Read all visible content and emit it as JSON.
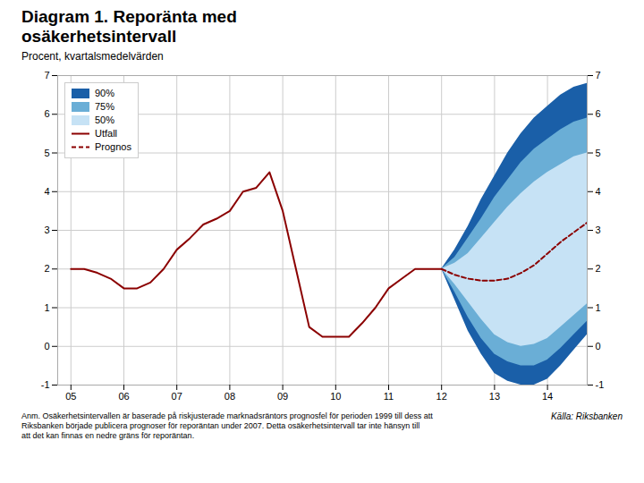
{
  "chart_data": {
    "type": "line",
    "title": "Diagram 1. Reporänta med\nosäkerhetsintervall",
    "subtitle": "Procent, kvartalsmedelvärden",
    "annotations": [
      "Anm. Osäkerhetsintervallen är baserade på riskjusterade marknadsräntors prognosfel för perioden 1999 till dess att\nRiksbanken började publicera prognoser för reporäntan under 2007. Detta osäkerhetsintervall tar inte hänsyn till\natt det kan finnas en nedre gräns för reporäntan.",
      "Källa: Riksbanken"
    ],
    "xlim": [
      2004.75,
      2014.75
    ],
    "xticks": [
      {
        "value": 2005,
        "label": "05"
      },
      {
        "value": 2006,
        "label": "06"
      },
      {
        "value": 2007,
        "label": "07"
      },
      {
        "value": 2008,
        "label": "08"
      },
      {
        "value": 2009,
        "label": "09"
      },
      {
        "value": 2010,
        "label": "10"
      },
      {
        "value": 2011,
        "label": "11"
      },
      {
        "value": 2012,
        "label": "12"
      },
      {
        "value": 2013,
        "label": "13"
      },
      {
        "value": 2014,
        "label": "14"
      }
    ],
    "ylim": [
      -1,
      7
    ],
    "yticks": [
      -1,
      0,
      1,
      2,
      3,
      4,
      5,
      6,
      7
    ],
    "grid": true,
    "legend": "upper left",
    "series": [
      {
        "name": "90%",
        "type": "area",
        "color": "#1a5fa8",
        "x": [
          2012.0,
          2012.25,
          2012.5,
          2012.75,
          2013.0,
          2013.25,
          2013.5,
          2013.75,
          2014.0,
          2014.25,
          2014.5,
          2014.75
        ],
        "lower": [
          2.0,
          1.2,
          0.4,
          -0.2,
          -0.7,
          -0.9,
          -1.0,
          -1.0,
          -0.85,
          -0.5,
          -0.1,
          0.3
        ],
        "upper": [
          2.0,
          2.5,
          3.1,
          3.8,
          4.4,
          5.0,
          5.5,
          5.9,
          6.2,
          6.5,
          6.7,
          6.8
        ]
      },
      {
        "name": "75%",
        "type": "area",
        "color": "#6aaed6",
        "x": [
          2012.0,
          2012.25,
          2012.5,
          2012.75,
          2013.0,
          2013.25,
          2013.5,
          2013.75,
          2014.0,
          2014.25,
          2014.5,
          2014.75
        ],
        "lower": [
          2.0,
          1.4,
          0.75,
          0.2,
          -0.2,
          -0.4,
          -0.5,
          -0.5,
          -0.35,
          -0.05,
          0.3,
          0.65
        ],
        "upper": [
          2.0,
          2.3,
          2.8,
          3.3,
          3.85,
          4.3,
          4.75,
          5.1,
          5.35,
          5.6,
          5.8,
          5.9
        ]
      },
      {
        "name": "50%",
        "type": "area",
        "color": "#c6e2f5",
        "x": [
          2012.0,
          2012.25,
          2012.5,
          2012.75,
          2013.0,
          2013.25,
          2013.5,
          2013.75,
          2014.0,
          2014.25,
          2014.5,
          2014.75
        ],
        "lower": [
          2.0,
          1.6,
          1.15,
          0.7,
          0.3,
          0.1,
          0.0,
          0.05,
          0.2,
          0.5,
          0.8,
          1.1
        ],
        "upper": [
          2.0,
          2.15,
          2.4,
          2.8,
          3.2,
          3.6,
          3.95,
          4.25,
          4.5,
          4.7,
          4.9,
          5.0
        ]
      },
      {
        "name": "Utfall",
        "type": "line",
        "color": "#8B0000",
        "line_style": "solid",
        "x": [
          2005.0,
          2005.25,
          2005.5,
          2005.75,
          2006.0,
          2006.25,
          2006.5,
          2006.75,
          2007.0,
          2007.25,
          2007.5,
          2007.75,
          2008.0,
          2008.25,
          2008.5,
          2008.75,
          2009.0,
          2009.25,
          2009.5,
          2009.75,
          2010.0,
          2010.25,
          2010.5,
          2010.75,
          2011.0,
          2011.25,
          2011.5,
          2011.75,
          2012.0
        ],
        "values": [
          2.0,
          2.0,
          1.9,
          1.75,
          1.5,
          1.5,
          1.65,
          2.0,
          2.5,
          2.8,
          3.15,
          3.3,
          3.5,
          4.0,
          4.1,
          4.5,
          3.5,
          2.0,
          0.5,
          0.25,
          0.25,
          0.25,
          0.6,
          1.0,
          1.5,
          1.75,
          2.0,
          2.0,
          2.0
        ]
      },
      {
        "name": "Prognos",
        "type": "line",
        "color": "#8B0000",
        "line_style": "dashed",
        "x": [
          2012.0,
          2012.25,
          2012.5,
          2012.75,
          2013.0,
          2013.25,
          2013.5,
          2013.75,
          2014.0,
          2014.25,
          2014.5,
          2014.75
        ],
        "values": [
          2.0,
          1.85,
          1.75,
          1.7,
          1.7,
          1.75,
          1.9,
          2.1,
          2.4,
          2.7,
          2.95,
          3.2
        ]
      }
    ]
  }
}
